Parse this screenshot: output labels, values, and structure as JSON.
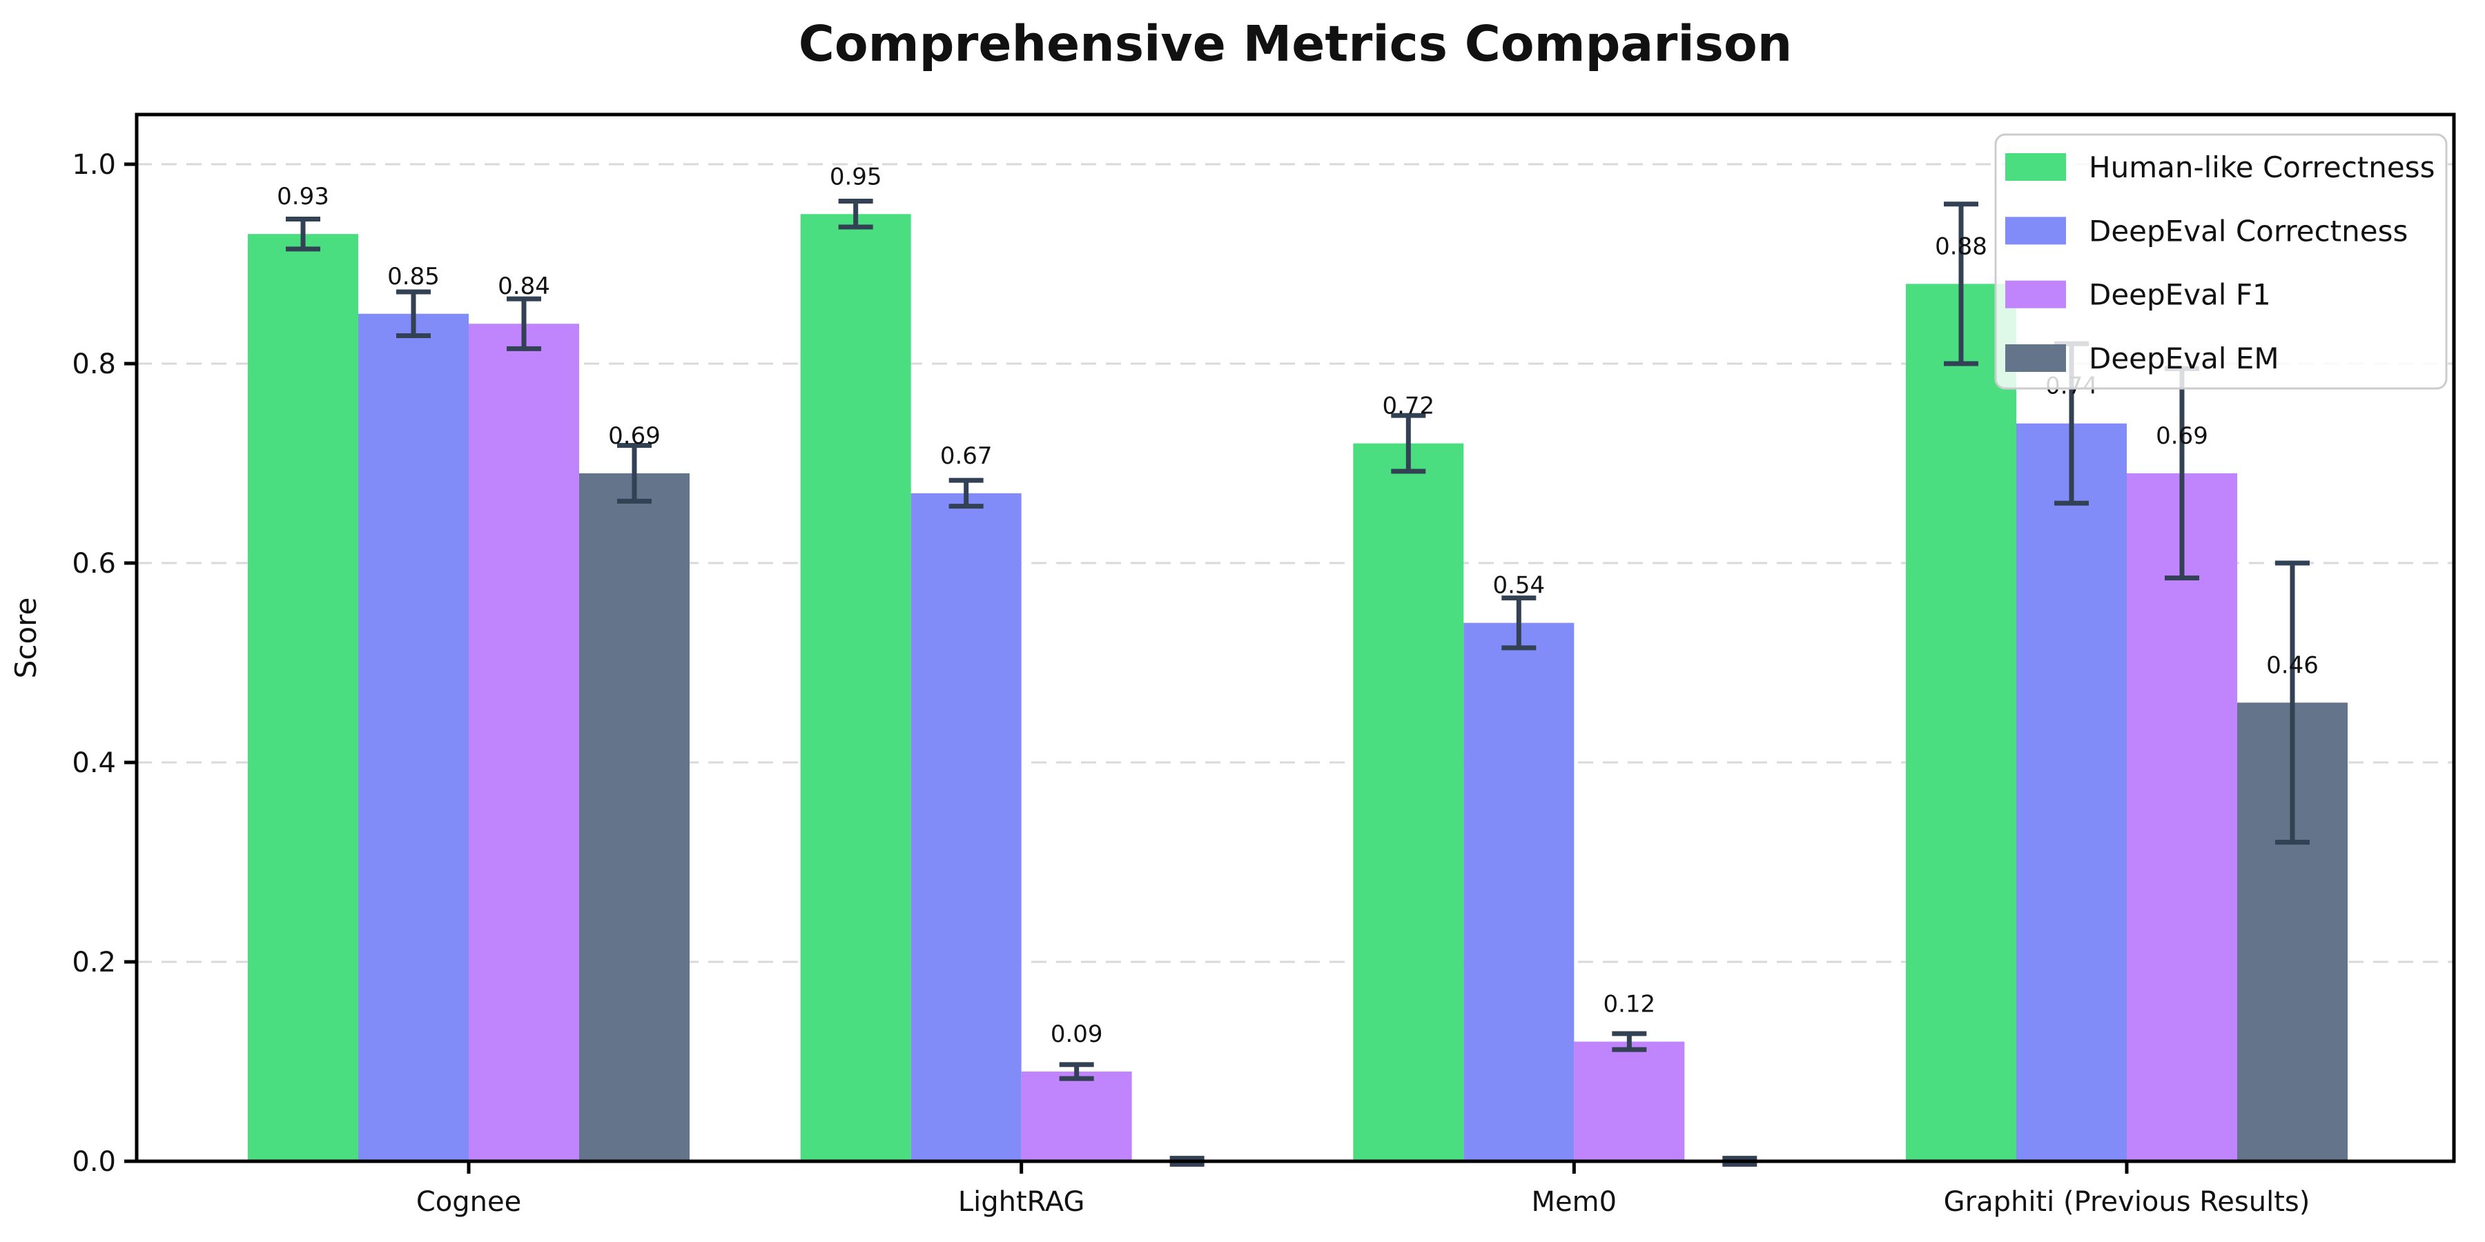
{
  "chart_data": {
    "type": "bar",
    "title": "Comprehensive Metrics Comparison",
    "ylabel": "Score",
    "xlabel": "",
    "categories": [
      "Cognee",
      "LightRAG",
      "Mem0",
      "Graphiti (Previous Results)"
    ],
    "series": [
      {
        "name": "Human-like Correctness",
        "color": "#4ade80",
        "values": [
          0.93,
          0.95,
          0.72,
          0.88
        ],
        "errors": [
          0.015,
          0.013,
          0.028,
          0.08
        ],
        "labels": [
          "0.93",
          "0.95",
          "0.72",
          "0.88"
        ]
      },
      {
        "name": "DeepEval Correctness",
        "color": "#818cf8",
        "values": [
          0.85,
          0.67,
          0.54,
          0.74
        ],
        "errors": [
          0.022,
          0.013,
          0.025,
          0.08
        ],
        "labels": [
          "0.85",
          "0.67",
          "0.54",
          "0.74"
        ]
      },
      {
        "name": "DeepEval F1",
        "color": "#c084fc",
        "values": [
          0.84,
          0.09,
          0.12,
          0.69
        ],
        "errors": [
          0.025,
          0.007,
          0.008,
          0.105
        ],
        "labels": [
          "0.84",
          "0.09",
          "0.12",
          "0.69"
        ]
      },
      {
        "name": "DeepEval EM",
        "color": "#64748b",
        "values": [
          0.69,
          0.0,
          0.0,
          0.46
        ],
        "errors": [
          0.028,
          0.003,
          0.003,
          0.14
        ],
        "labels": [
          "0.69",
          "",
          "",
          "0.46"
        ]
      }
    ],
    "ytick_labels": [
      "0.0",
      "0.2",
      "0.4",
      "0.6",
      "0.8",
      "1.0"
    ],
    "ytick_values": [
      0.0,
      0.2,
      0.4,
      0.6,
      0.8,
      1.0
    ],
    "ylim": [
      0,
      1.05
    ],
    "grid": {
      "axis": "y",
      "style": "dashed",
      "color": "#d9d9d9"
    },
    "legend_position": "upper right",
    "error_bar_color": "#334155",
    "axis_color": "#000000"
  }
}
